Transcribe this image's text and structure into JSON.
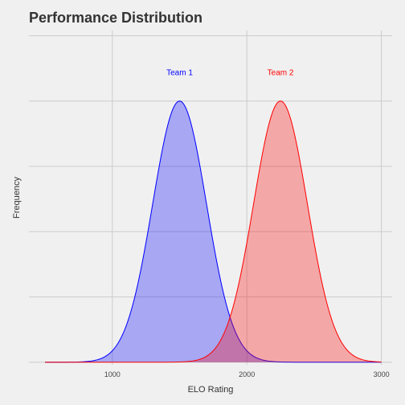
{
  "chart_data": {
    "type": "area",
    "title": "Performance Distribution",
    "xlabel": "ELO Rating",
    "ylabel": "Frequency",
    "xlim": [
      380,
      3080
    ],
    "ylim": [
      -0.01,
      1.27
    ],
    "x_ticks": [
      1000,
      2000,
      3000
    ],
    "y_gridlines": [
      0,
      0.25,
      0.5,
      0.75,
      1.0,
      1.25
    ],
    "show_y_tick_labels": false,
    "grid": true,
    "legend": "none",
    "x_range": [
      500,
      3000
    ],
    "series": [
      {
        "name": "Team 1",
        "distribution": "normal",
        "mean": 1500,
        "sd": 200,
        "peak": 1.0,
        "color": "#0000ff",
        "fill": "#aab0f0"
      },
      {
        "name": "Team 2",
        "distribution": "normal",
        "mean": 2250,
        "sd": 200,
        "peak": 1.0,
        "color": "#ff0000",
        "fill": "#f0aaae"
      }
    ],
    "annotations": [
      {
        "text": "Team 1",
        "x": 1500,
        "y": 1.1,
        "color": "#0000ff"
      },
      {
        "text": "Team 2",
        "x": 2250,
        "y": 1.1,
        "color": "#ff0000"
      }
    ]
  }
}
